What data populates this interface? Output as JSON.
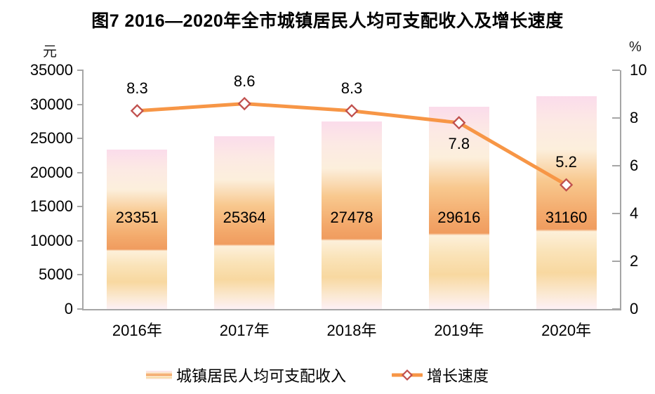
{
  "title": "图7 2016—2020年全市城镇居民人均可支配收入及增长速度",
  "chart_data": {
    "type": "bar+line combo",
    "title": "图7 2016—2020年全市城镇居民人均可支配收入及增长速度",
    "categories": [
      "2016年",
      "2017年",
      "2018年",
      "2019年",
      "2020年"
    ],
    "series": [
      {
        "name": "城镇居民人均可支配收入",
        "type": "bar",
        "axis": "left",
        "values": [
          23351,
          25364,
          27478,
          29616,
          31160
        ],
        "data_labels": [
          "23351",
          "25364",
          "27478",
          "29616",
          "31160"
        ]
      },
      {
        "name": "增长速度",
        "type": "line",
        "axis": "right",
        "values": [
          8.3,
          8.6,
          8.3,
          7.8,
          5.2
        ],
        "data_labels": [
          "8.3",
          "8.6",
          "8.3",
          "7.8",
          "5.2"
        ],
        "label_positions": [
          "above",
          "above",
          "above",
          "below",
          "above"
        ]
      }
    ],
    "left_axis": {
      "unit": "元",
      "min": 0,
      "max": 35000,
      "step": 5000,
      "ticks": [
        "0",
        "5000",
        "10000",
        "15000",
        "20000",
        "25000",
        "30000",
        "35000"
      ]
    },
    "right_axis": {
      "unit": "%",
      "min": 0,
      "max": 10,
      "step": 2,
      "ticks": [
        "0",
        "2",
        "4",
        "6",
        "8",
        "10"
      ]
    },
    "legend": [
      {
        "label": "城镇居民人均可支配收入",
        "swatch": "gradient-bar"
      },
      {
        "label": "增长速度",
        "swatch": "orange-line-diamond-marker"
      }
    ],
    "layout_hints": {
      "gridlines": "off",
      "legend_position": "bottom"
    },
    "colors": {
      "line": "#f79646",
      "marker_border": "#c0504d",
      "marker_fill": "#ffffff",
      "axis": "#a6a6a6",
      "text": "#000000",
      "bar_gradient_top": "#fbdceb",
      "bar_gradient_orange": "#f09c5f",
      "bar_gradient_bottom": "#fdf0f5"
    }
  }
}
